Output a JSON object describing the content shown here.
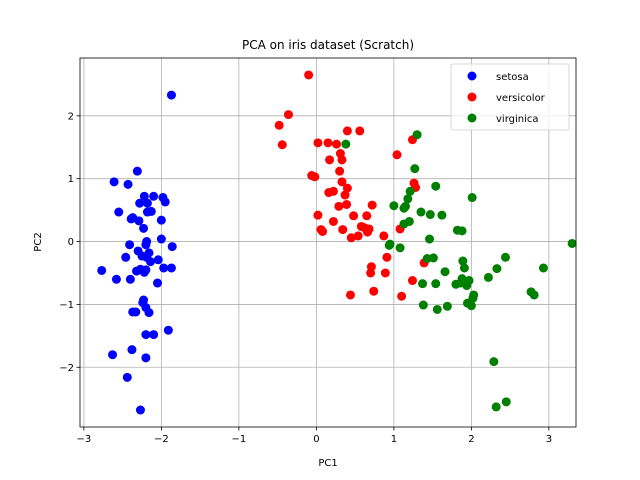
{
  "chart_data": {
    "type": "scatter",
    "title": "PCA on iris dataset (Scratch)",
    "xlabel": "PC1",
    "ylabel": "PC2",
    "xlim": [
      -3.05,
      3.35
    ],
    "ylim": [
      -2.95,
      2.92
    ],
    "xticks": [
      -3,
      -2,
      -1,
      0,
      1,
      2,
      3
    ],
    "yticks": [
      -2,
      -1,
      0,
      1,
      2
    ],
    "grid": true,
    "legend": "top-right",
    "series": [
      {
        "name": "setosa",
        "color": "#0000ff",
        "points": [
          [
            -1.87,
            2.33
          ],
          [
            -2.31,
            1.12
          ],
          [
            -2.61,
            0.95
          ],
          [
            -2.43,
            0.91
          ],
          [
            -2.22,
            0.72
          ],
          [
            -2.1,
            0.72
          ],
          [
            -1.98,
            0.7
          ],
          [
            -2.18,
            0.61
          ],
          [
            -2.28,
            0.61
          ],
          [
            -1.95,
            0.63
          ],
          [
            -2.55,
            0.47
          ],
          [
            -2.18,
            0.47
          ],
          [
            -2.13,
            0.48
          ],
          [
            -2.37,
            0.38
          ],
          [
            -2.29,
            0.33
          ],
          [
            -2.39,
            0.36
          ],
          [
            -2.0,
            0.34
          ],
          [
            -2.23,
            0.21
          ],
          [
            -2.0,
            0.04
          ],
          [
            -2.19,
            0.0
          ],
          [
            -2.41,
            -0.05
          ],
          [
            -2.2,
            -0.05
          ],
          [
            -1.86,
            -0.08
          ],
          [
            -2.3,
            -0.15
          ],
          [
            -2.16,
            -0.18
          ],
          [
            -2.25,
            -0.23
          ],
          [
            -2.46,
            -0.25
          ],
          [
            -2.19,
            -0.25
          ],
          [
            -2.14,
            -0.32
          ],
          [
            -2.04,
            -0.29
          ],
          [
            -2.27,
            -0.44
          ],
          [
            -2.2,
            -0.45
          ],
          [
            -1.97,
            -0.42
          ],
          [
            -1.87,
            -0.42
          ],
          [
            -2.32,
            -0.47
          ],
          [
            -2.22,
            -0.49
          ],
          [
            -2.77,
            -0.46
          ],
          [
            -2.58,
            -0.6
          ],
          [
            -2.4,
            -0.6
          ],
          [
            -2.05,
            -0.66
          ],
          [
            -2.23,
            -0.93
          ],
          [
            -2.24,
            -0.97
          ],
          [
            -2.2,
            -1.05
          ],
          [
            -2.37,
            -1.12
          ],
          [
            -2.33,
            -1.12
          ],
          [
            -2.16,
            -1.13
          ],
          [
            -2.2,
            -1.48
          ],
          [
            -2.1,
            -1.48
          ],
          [
            -1.91,
            -1.41
          ],
          [
            -2.63,
            -1.8
          ],
          [
            -2.38,
            -1.72
          ],
          [
            -2.2,
            -1.85
          ],
          [
            -2.44,
            -2.16
          ],
          [
            -2.27,
            -2.68
          ]
        ]
      },
      {
        "name": "versicolor",
        "color": "#ff0000",
        "points": [
          [
            -0.1,
            2.65
          ],
          [
            -0.36,
            2.02
          ],
          [
            -0.48,
            1.85
          ],
          [
            -0.44,
            1.54
          ],
          [
            0.4,
            1.76
          ],
          [
            0.56,
            1.76
          ],
          [
            0.02,
            1.57
          ],
          [
            0.15,
            1.57
          ],
          [
            0.26,
            1.55
          ],
          [
            0.31,
            1.4
          ],
          [
            0.33,
            1.3
          ],
          [
            0.17,
            1.3
          ],
          [
            0.3,
            1.12
          ],
          [
            0.33,
            0.95
          ],
          [
            -0.06,
            1.05
          ],
          [
            -0.02,
            1.03
          ],
          [
            0.4,
            0.85
          ],
          [
            1.04,
            1.38
          ],
          [
            1.24,
            1.62
          ],
          [
            0.16,
            0.78
          ],
          [
            0.22,
            0.8
          ],
          [
            0.37,
            0.74
          ],
          [
            0.72,
            0.58
          ],
          [
            0.29,
            0.56
          ],
          [
            0.39,
            0.59
          ],
          [
            0.65,
            0.41
          ],
          [
            0.48,
            0.41
          ],
          [
            0.02,
            0.42
          ],
          [
            0.22,
            0.32
          ],
          [
            0.58,
            0.24
          ],
          [
            0.34,
            0.19
          ],
          [
            0.06,
            0.19
          ],
          [
            0.08,
            0.16
          ],
          [
            0.66,
            0.15
          ],
          [
            0.62,
            0.22
          ],
          [
            0.68,
            0.2
          ],
          [
            0.87,
            0.09
          ],
          [
            0.54,
            0.09
          ],
          [
            0.45,
            0.06
          ],
          [
            1.08,
            0.2
          ],
          [
            1.28,
            0.86
          ],
          [
            1.26,
            0.93
          ],
          [
            0.91,
            -0.25
          ],
          [
            0.71,
            -0.4
          ],
          [
            1.39,
            -0.34
          ],
          [
            0.89,
            -0.5
          ],
          [
            0.7,
            -0.5
          ],
          [
            1.24,
            -0.62
          ],
          [
            0.44,
            -0.85
          ],
          [
            1.1,
            -0.87
          ],
          [
            0.74,
            -0.79
          ]
        ]
      },
      {
        "name": "virginica",
        "color": "#008000",
        "points": [
          [
            1.3,
            1.7
          ],
          [
            0.38,
            1.55
          ],
          [
            1.27,
            1.16
          ],
          [
            1.54,
            0.88
          ],
          [
            1.21,
            0.8
          ],
          [
            1.18,
            0.68
          ],
          [
            2.01,
            0.7
          ],
          [
            1.0,
            0.57
          ],
          [
            1.15,
            0.56
          ],
          [
            1.13,
            0.53
          ],
          [
            1.35,
            0.47
          ],
          [
            1.47,
            0.43
          ],
          [
            1.62,
            0.42
          ],
          [
            1.2,
            0.32
          ],
          [
            1.13,
            0.28
          ],
          [
            1.82,
            0.18
          ],
          [
            1.88,
            0.17
          ],
          [
            1.46,
            0.04
          ],
          [
            0.95,
            -0.04
          ],
          [
            0.94,
            -0.06
          ],
          [
            1.08,
            -0.1
          ],
          [
            3.3,
            -0.03
          ],
          [
            1.51,
            -0.26
          ],
          [
            1.43,
            -0.27
          ],
          [
            2.44,
            -0.25
          ],
          [
            1.89,
            -0.31
          ],
          [
            1.91,
            -0.42
          ],
          [
            2.33,
            -0.43
          ],
          [
            2.93,
            -0.42
          ],
          [
            1.66,
            -0.48
          ],
          [
            1.88,
            -0.59
          ],
          [
            1.86,
            -0.66
          ],
          [
            1.54,
            -0.67
          ],
          [
            1.94,
            -0.7
          ],
          [
            2.22,
            -0.57
          ],
          [
            1.97,
            -0.62
          ],
          [
            1.37,
            -0.67
          ],
          [
            1.38,
            -1.01
          ],
          [
            1.56,
            -1.08
          ],
          [
            1.69,
            -1.03
          ],
          [
            1.95,
            -0.98
          ],
          [
            2.02,
            -0.9
          ],
          [
            2.03,
            -0.85
          ],
          [
            2.77,
            -0.8
          ],
          [
            2.81,
            -0.85
          ],
          [
            2.0,
            -1.02
          ],
          [
            2.29,
            -1.91
          ],
          [
            2.45,
            -2.55
          ],
          [
            2.32,
            -2.63
          ],
          [
            1.8,
            -0.68
          ]
        ]
      }
    ]
  }
}
